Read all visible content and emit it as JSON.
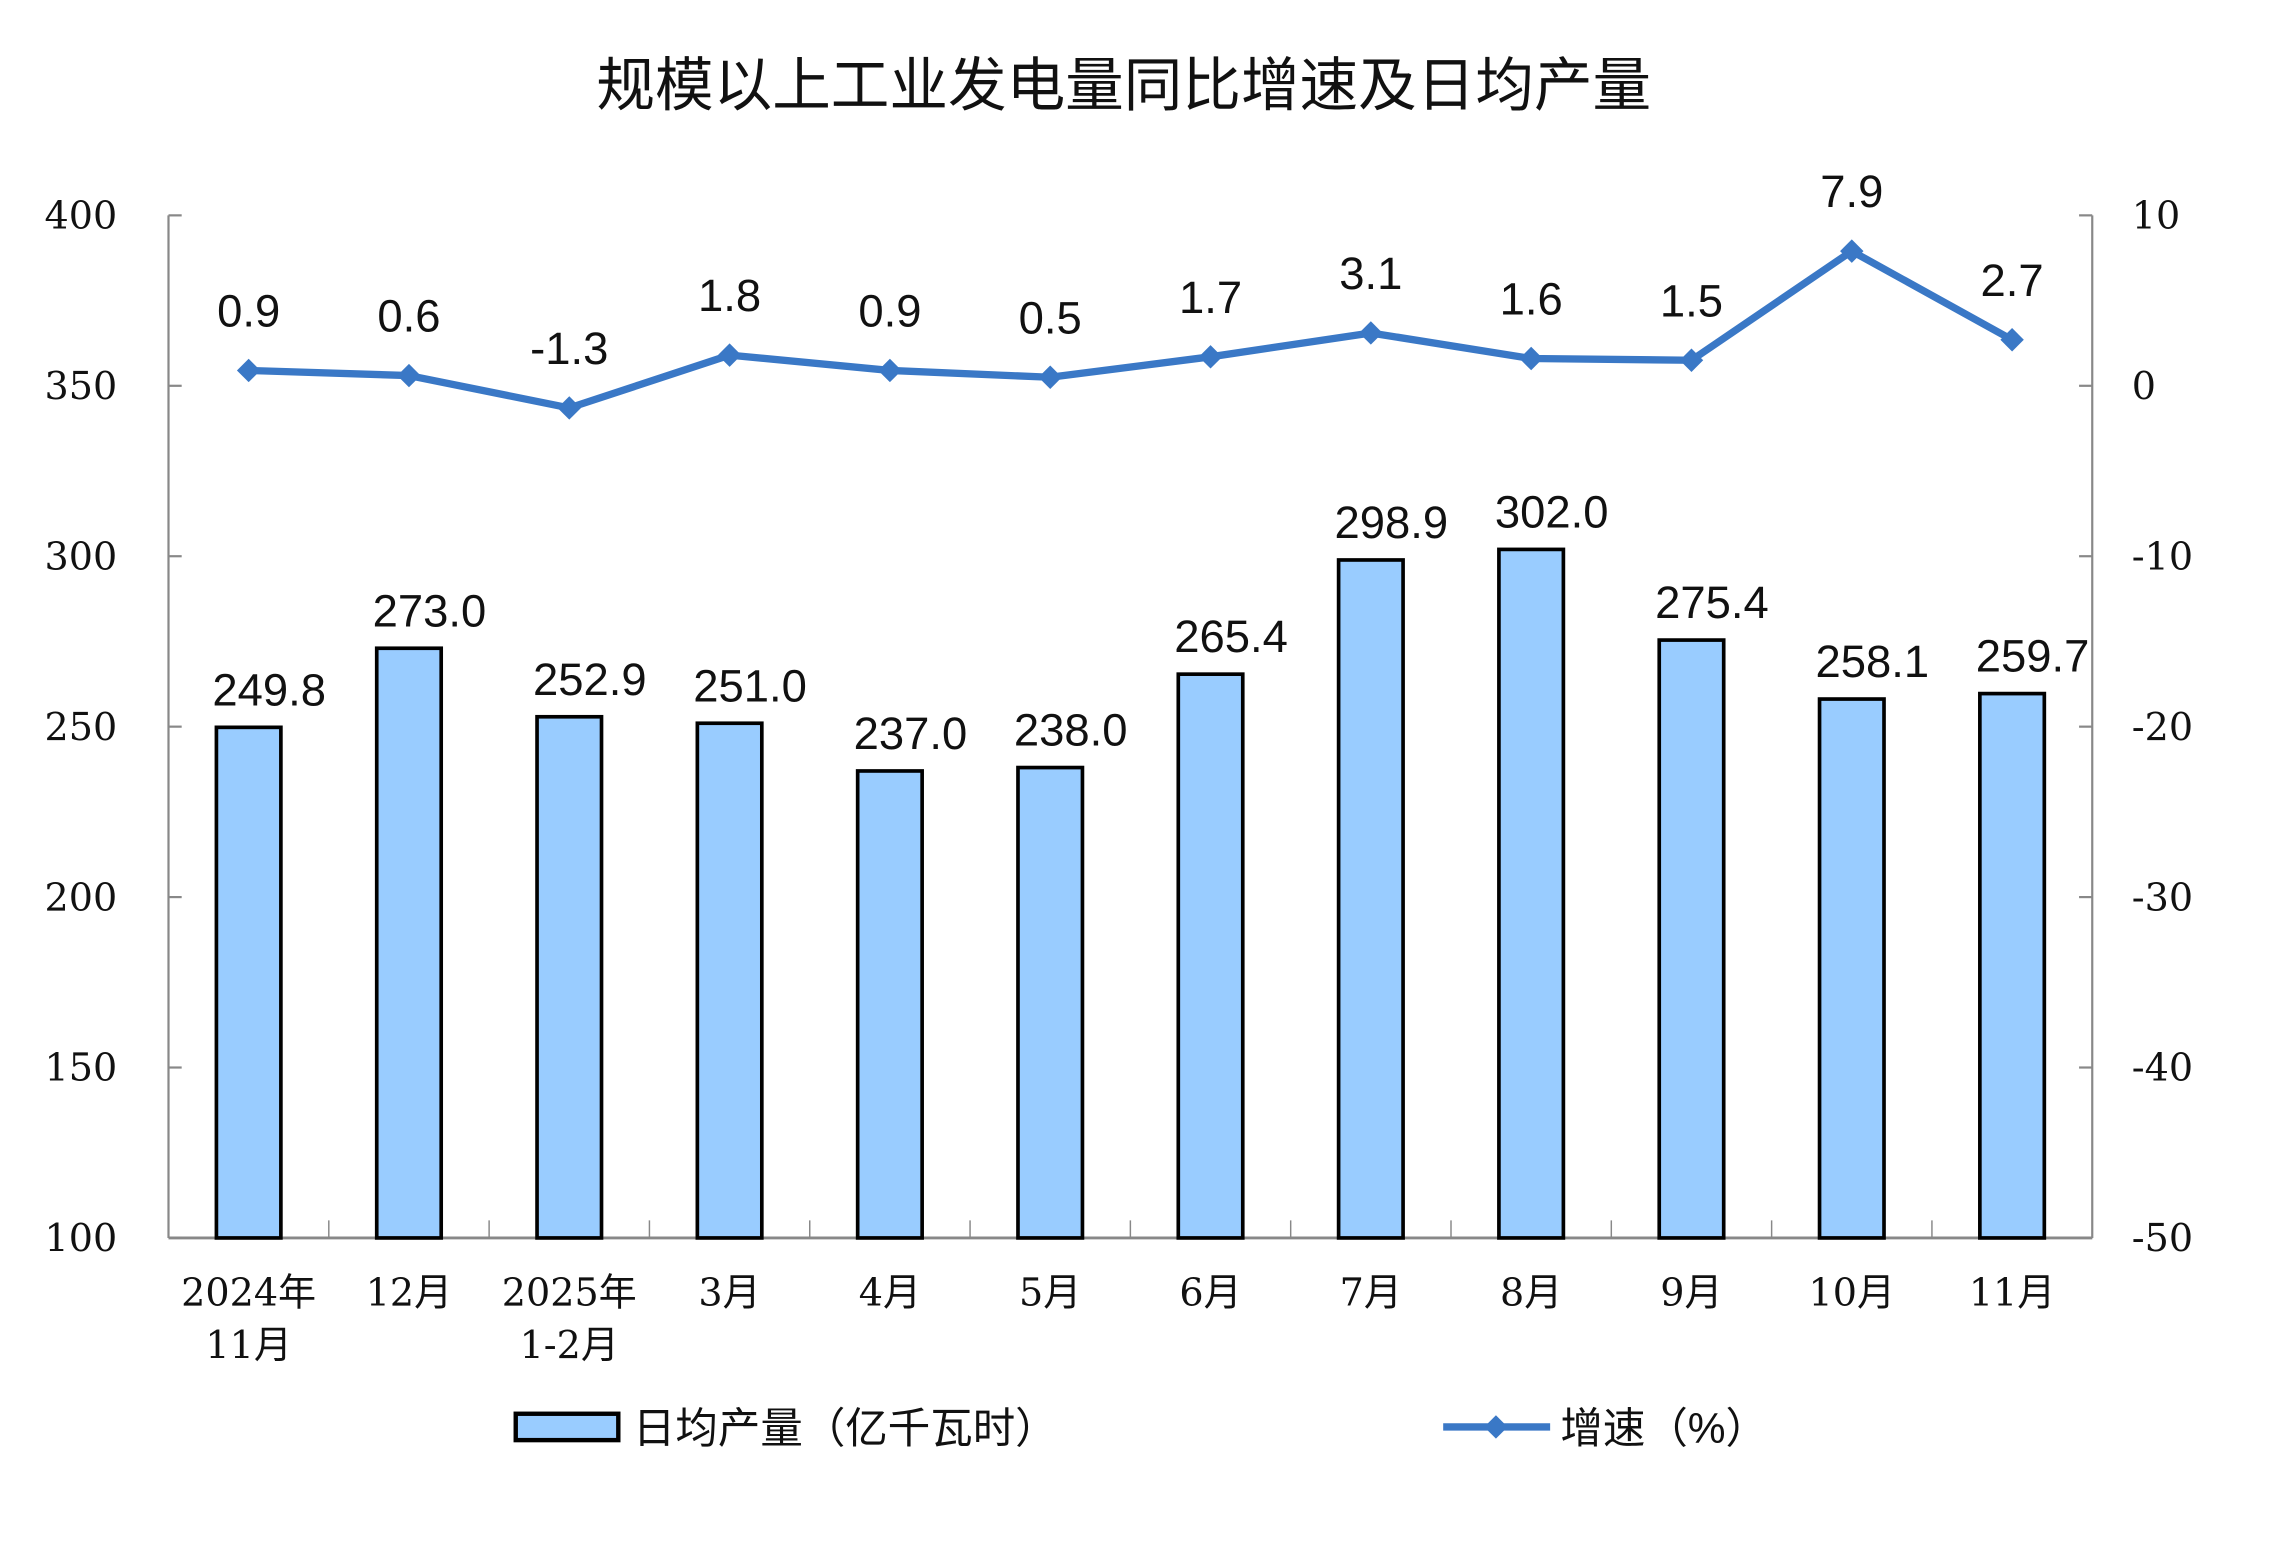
{
  "chart_data": {
    "type": "bar+line",
    "title": "规模以上工业发电量同比增速及日均产量",
    "categories": [
      [
        "2024年",
        "11月"
      ],
      [
        "12月"
      ],
      [
        "2025年",
        "1-2月"
      ],
      [
        "3月"
      ],
      [
        "4月"
      ],
      [
        "5月"
      ],
      [
        "6月"
      ],
      [
        "7月"
      ],
      [
        "8月"
      ],
      [
        "9月"
      ],
      [
        "10月"
      ],
      [
        "11月"
      ]
    ],
    "series": [
      {
        "name": "日均产量（亿千瓦时）",
        "type": "bar",
        "axis": "left",
        "color": "#99CCFF",
        "values": [
          249.8,
          273.0,
          252.9,
          251.0,
          237.0,
          238.0,
          265.4,
          298.9,
          302.0,
          275.4,
          258.1,
          259.7
        ],
        "labels": [
          "249.8",
          "273.0",
          "252.9",
          "251.0",
          "237.0",
          "238.0",
          "265.4",
          "298.9",
          "302.0",
          "275.4",
          "258.1",
          "259.7"
        ]
      },
      {
        "name": "增速（%）",
        "type": "line",
        "axis": "right",
        "color": "#3A78C6",
        "marker": "diamond",
        "values": [
          0.9,
          0.6,
          -1.3,
          1.8,
          0.9,
          0.5,
          1.7,
          3.1,
          1.6,
          1.5,
          7.9,
          2.7
        ],
        "labels": [
          "0.9",
          "0.6",
          "-1.3",
          "1.8",
          "0.9",
          "0.5",
          "1.7",
          "3.1",
          "1.6",
          "1.5",
          "7.9",
          "2.7"
        ]
      }
    ],
    "y_left": {
      "range": [
        100,
        400
      ],
      "ticks": [
        "400",
        "350",
        "300",
        "250",
        "200",
        "150",
        "100"
      ]
    },
    "y_right": {
      "range": [
        -50,
        10
      ],
      "ticks": [
        "10",
        "0",
        "-10",
        "-20",
        "-30",
        "-40",
        "-50"
      ]
    },
    "grid": false,
    "legend_position": "bottom"
  }
}
